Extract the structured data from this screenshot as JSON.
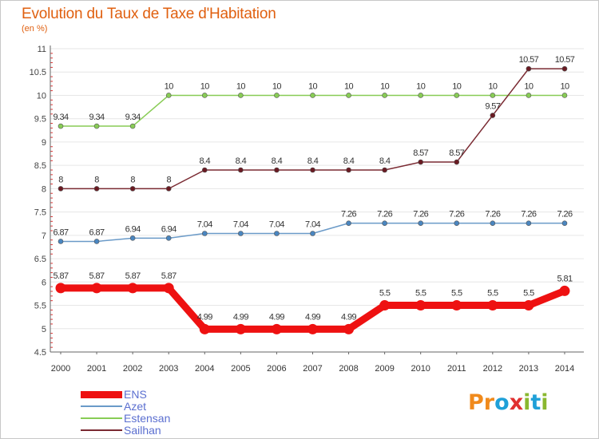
{
  "title": "Evolution du Taux de Taxe d'Habitation",
  "subtitle": "(en %)",
  "logo": {
    "text": "Proxiti",
    "colors": [
      "#f08a1c",
      "#f08a1c",
      "#1fa0d8",
      "#e03030",
      "#8ab830",
      "#1fa0d8",
      "#8ab830"
    ]
  },
  "chart_data": {
    "type": "line",
    "title": "Evolution du Taux de Taxe d'Habitation",
    "ylabel": "(en %)",
    "xlabel": "",
    "ylim": [
      4.5,
      11
    ],
    "yticks": [
      "4.5",
      "5",
      "5.5",
      "6",
      "6.5",
      "7",
      "7.5",
      "8",
      "8.5",
      "9",
      "9.5",
      "10",
      "10.5",
      "11"
    ],
    "categories": [
      "2000",
      "2001",
      "2002",
      "2003",
      "2004",
      "2005",
      "2006",
      "2007",
      "2008",
      "2009",
      "2010",
      "2011",
      "2012",
      "2013",
      "2014"
    ],
    "grid": "horizontal",
    "series": [
      {
        "name": "Estensan",
        "color": "#88cc55",
        "marker": "#88cc55",
        "width": 1.5,
        "values": [
          9.34,
          9.34,
          9.34,
          10,
          10,
          10,
          10,
          10,
          10,
          10,
          10,
          10,
          10,
          10,
          10
        ],
        "labels": [
          "9.34",
          "9.34",
          "9.34",
          "10",
          "10",
          "10",
          "10",
          "10",
          "10",
          "10",
          "10",
          "10",
          "10",
          "10",
          "10"
        ]
      },
      {
        "name": "Sailhan",
        "color": "#7a2a32",
        "marker": "#6a1a22",
        "width": 1.5,
        "values": [
          8,
          8,
          8,
          8,
          8.4,
          8.4,
          8.4,
          8.4,
          8.4,
          8.4,
          8.57,
          8.57,
          9.57,
          10.57,
          10.57
        ],
        "labels": [
          "8",
          "8",
          "8",
          "8",
          "8.4",
          "8.4",
          "8.4",
          "8.4",
          "8.4",
          "8.4",
          "8.57",
          "8.57",
          "9.57",
          "10.57",
          "10.57"
        ]
      },
      {
        "name": "Azet",
        "color": "#6a9ac8",
        "marker": "#4a86c0",
        "width": 1.5,
        "values": [
          6.87,
          6.87,
          6.94,
          6.94,
          7.04,
          7.04,
          7.04,
          7.04,
          7.26,
          7.26,
          7.26,
          7.26,
          7.26,
          7.26,
          7.26
        ],
        "labels": [
          "6.87",
          "6.87",
          "6.94",
          "6.94",
          "7.04",
          "7.04",
          "7.04",
          "7.04",
          "7.26",
          "7.26",
          "7.26",
          "7.26",
          "7.26",
          "7.26",
          "7.26"
        ]
      },
      {
        "name": "ENS",
        "color": "#ee1111",
        "marker": "#ee1111",
        "width": 9,
        "values": [
          5.87,
          5.87,
          5.87,
          5.87,
          4.99,
          4.99,
          4.99,
          4.99,
          4.99,
          5.5,
          5.5,
          5.5,
          5.5,
          5.5,
          5.81
        ],
        "labels": [
          "5.87",
          "5.87",
          "5.87",
          "5.87",
          "4.99",
          "4.99",
          "4.99",
          "4.99",
          "4.99",
          "5.5",
          "5.5",
          "5.5",
          "5.5",
          "5.5",
          "5.81"
        ]
      }
    ],
    "legend": {
      "placement": "bottom-left",
      "order": [
        "ENS",
        "Azet",
        "Estensan",
        "Sailhan"
      ]
    }
  }
}
